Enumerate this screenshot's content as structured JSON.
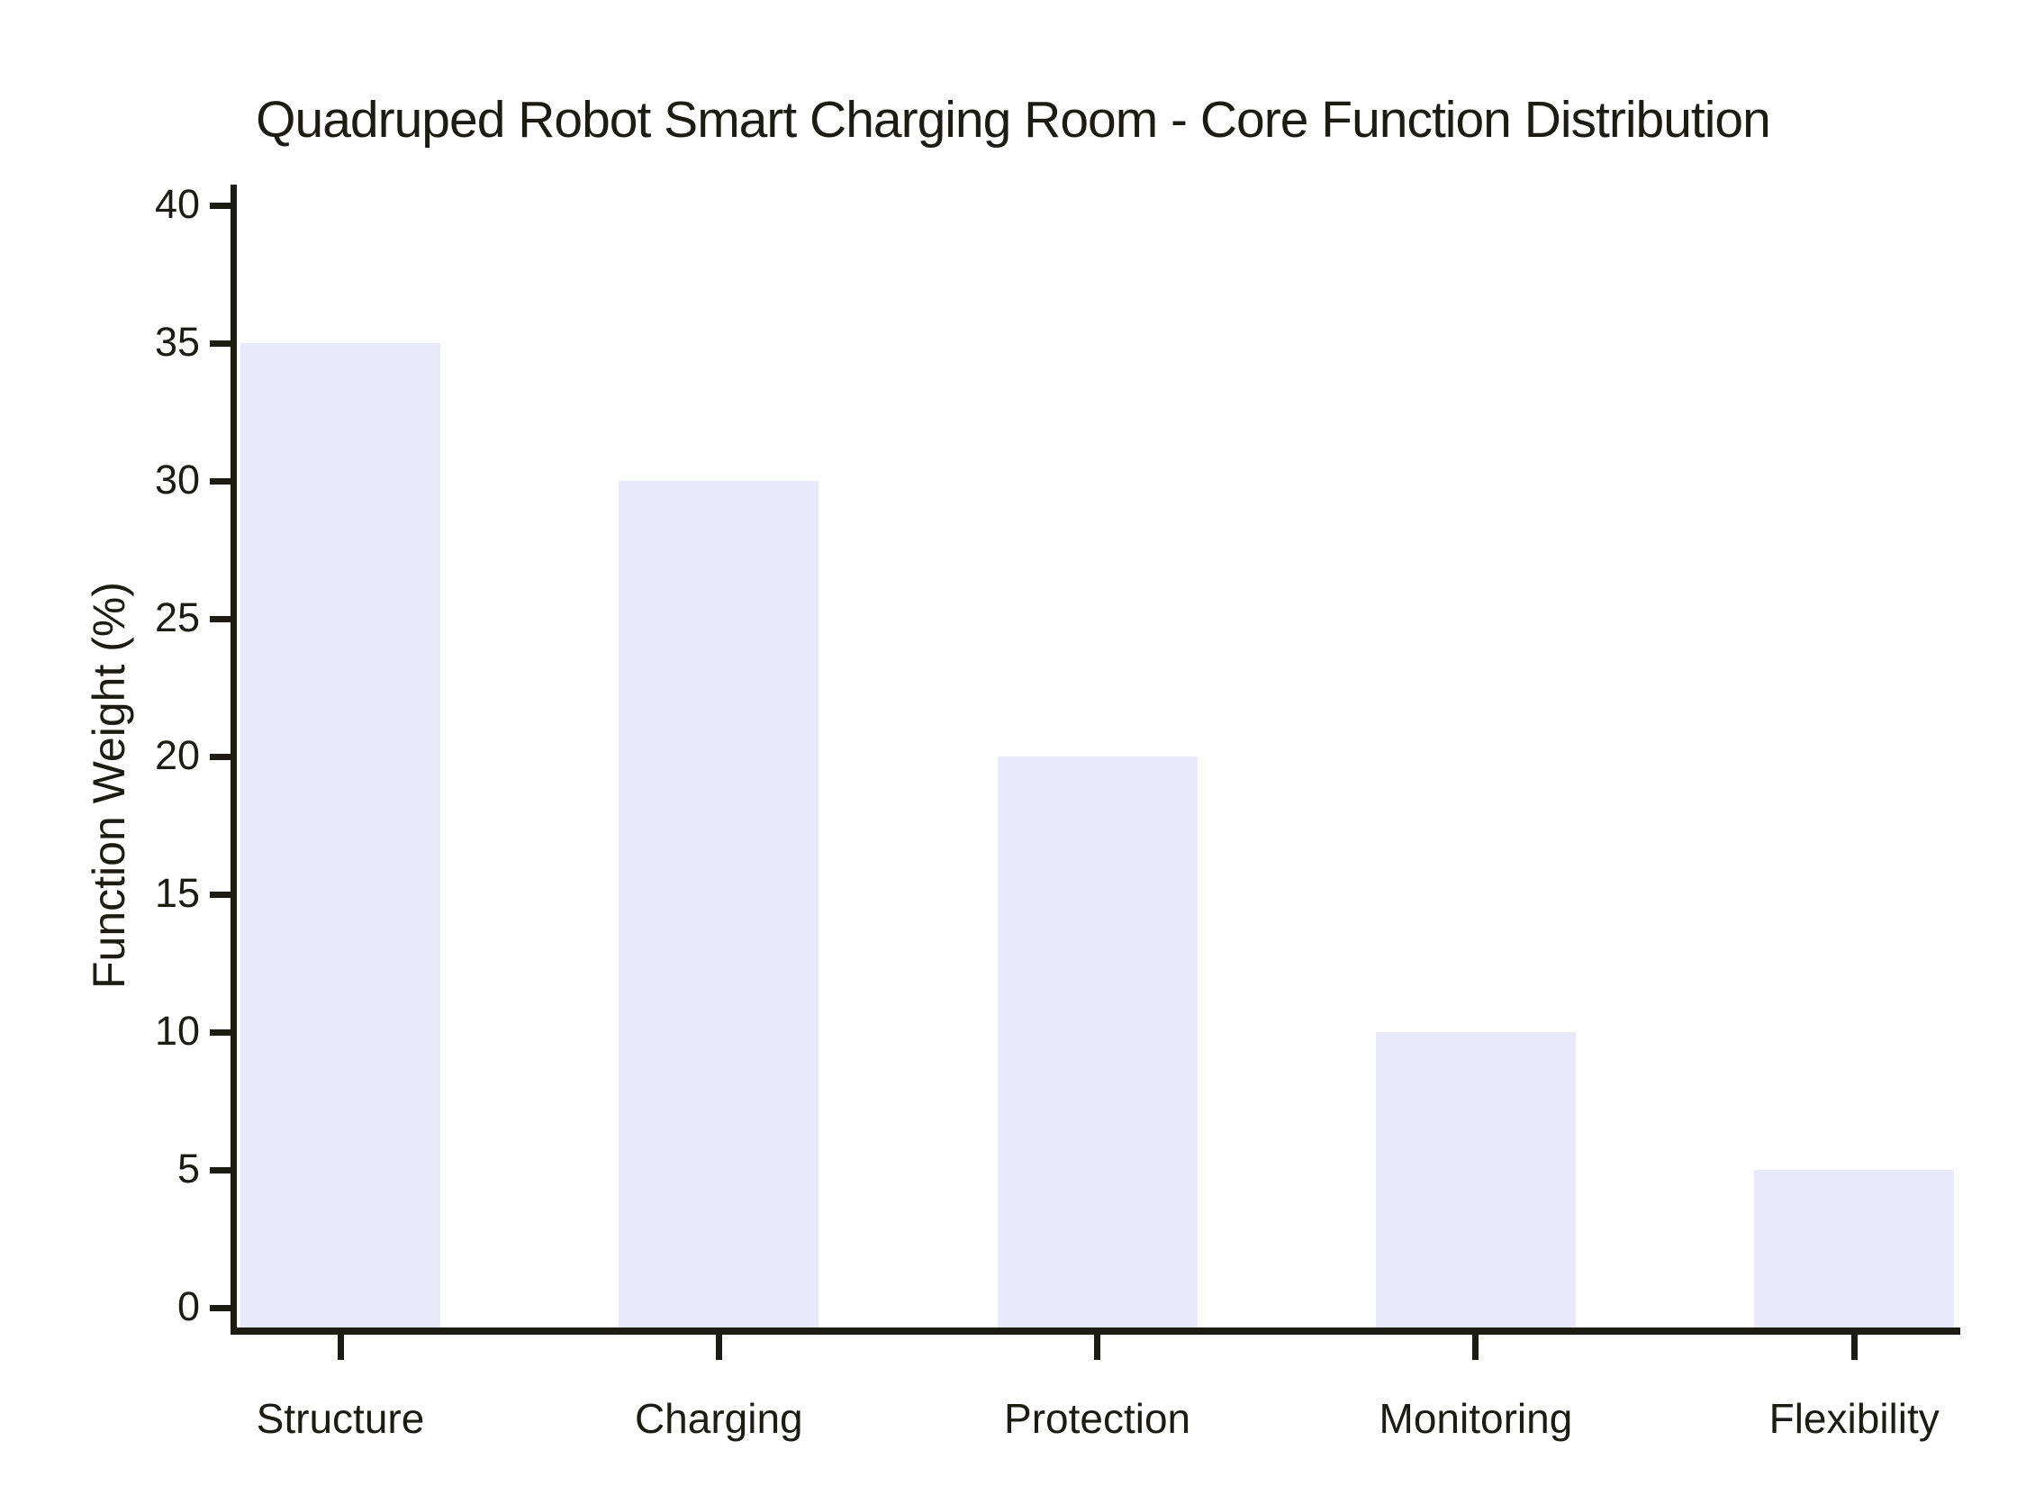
{
  "chart_data": {
    "type": "bar",
    "title": "Quadruped Robot Smart Charging Room - Core Function Distribution",
    "categories": [
      "Structure",
      "Charging",
      "Protection",
      "Monitoring",
      "Flexibility"
    ],
    "values": [
      35,
      30,
      20,
      10,
      5
    ],
    "xlabel": "",
    "ylabel": "Function Weight (%)",
    "ylim": [
      0,
      40
    ],
    "yticks": [
      0,
      5,
      10,
      15,
      20,
      25,
      30,
      35,
      40
    ],
    "grid": false,
    "legend": false,
    "style": "xkcd-sketch",
    "colors": {
      "bar_fill": "#e9e9fc",
      "axis": "#1c1c12",
      "text": "#1c1c12",
      "background": "#ffffff"
    }
  }
}
